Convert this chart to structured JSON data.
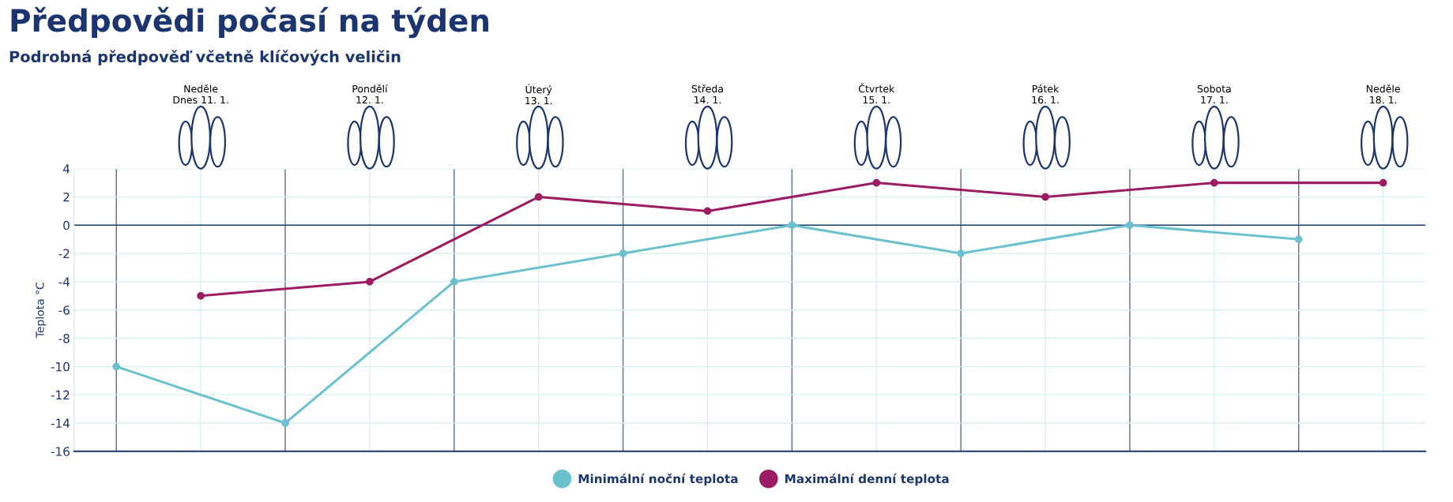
{
  "chart_data": {
    "type": "line",
    "title": "Předpovědi počasí na týden",
    "subtitle": "Podrobná předpověď včetně klíčových veličin",
    "ylabel": "Teplota °C",
    "categories": [
      null,
      null,
      null,
      null,
      null,
      null,
      null,
      null,
      null,
      null,
      null,
      null,
      null,
      null,
      null,
      null
    ],
    "series": [
      {
        "name": "Minimální noční teplota",
        "color": "#6cc1cf",
        "values": [
          -10,
          null,
          -14,
          null,
          -4,
          null,
          -2,
          null,
          0,
          null,
          -2,
          null,
          0,
          null,
          -1,
          null
        ]
      },
      {
        "name": "Maximální denní teplota",
        "color": "#9c1b63",
        "values": [
          null,
          -5,
          null,
          -4,
          null,
          2,
          null,
          1,
          null,
          3,
          null,
          2,
          null,
          3,
          null,
          3
        ]
      }
    ],
    "annotations": [
      "Neděle\nDnes 11. 1.",
      "Pondělí\n12. 1.",
      "Úterý\n13. 1.",
      "Středa\n14. 1.",
      "Čtvrtek\n15. 1.",
      "Pátek\n16. 1.",
      "Sobota\n17. 1.",
      "Neděle\n18. 1."
    ],
    "ylim": [
      -16,
      4
    ],
    "yticks": [
      -16,
      -14,
      -12,
      -10,
      -8,
      -6,
      -4,
      -2,
      0,
      2,
      4
    ],
    "ref_lines": [
      {
        "axis": "y",
        "value": 0,
        "color": "#1f3a6e"
      }
    ],
    "tick_labels": "y",
    "grid": true,
    "legend": "bottom",
    "marker": "circle",
    "line_style": "solid"
  }
}
